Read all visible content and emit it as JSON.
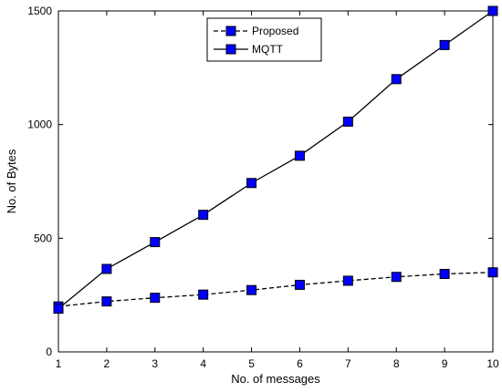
{
  "chart_data": {
    "type": "line",
    "xlabel": "No. of messages",
    "ylabel": "No. of Bytes",
    "xlim": [
      1,
      10
    ],
    "ylim": [
      0,
      1500
    ],
    "xticks": [
      "1",
      "2",
      "3",
      "4",
      "5",
      "6",
      "7",
      "8",
      "9",
      "10"
    ],
    "yticks": [
      "0",
      "500",
      "1000",
      "1500"
    ],
    "grid": false,
    "legend_position": "top-center",
    "x": [
      1,
      2,
      3,
      4,
      5,
      6,
      7,
      8,
      9,
      10
    ],
    "series": [
      {
        "name": "Proposed",
        "line_style": "dashed",
        "marker": "square",
        "line_color": "#000000",
        "marker_color": "#0000ff",
        "values": [
          200,
          222,
          238,
          252,
          272,
          295,
          313,
          330,
          343,
          350
        ]
      },
      {
        "name": "MQTT",
        "line_style": "solid",
        "marker": "square",
        "line_color": "#000000",
        "marker_color": "#0000ff",
        "values": [
          190,
          365,
          483,
          603,
          743,
          863,
          1013,
          1200,
          1350,
          1500
        ]
      }
    ]
  }
}
